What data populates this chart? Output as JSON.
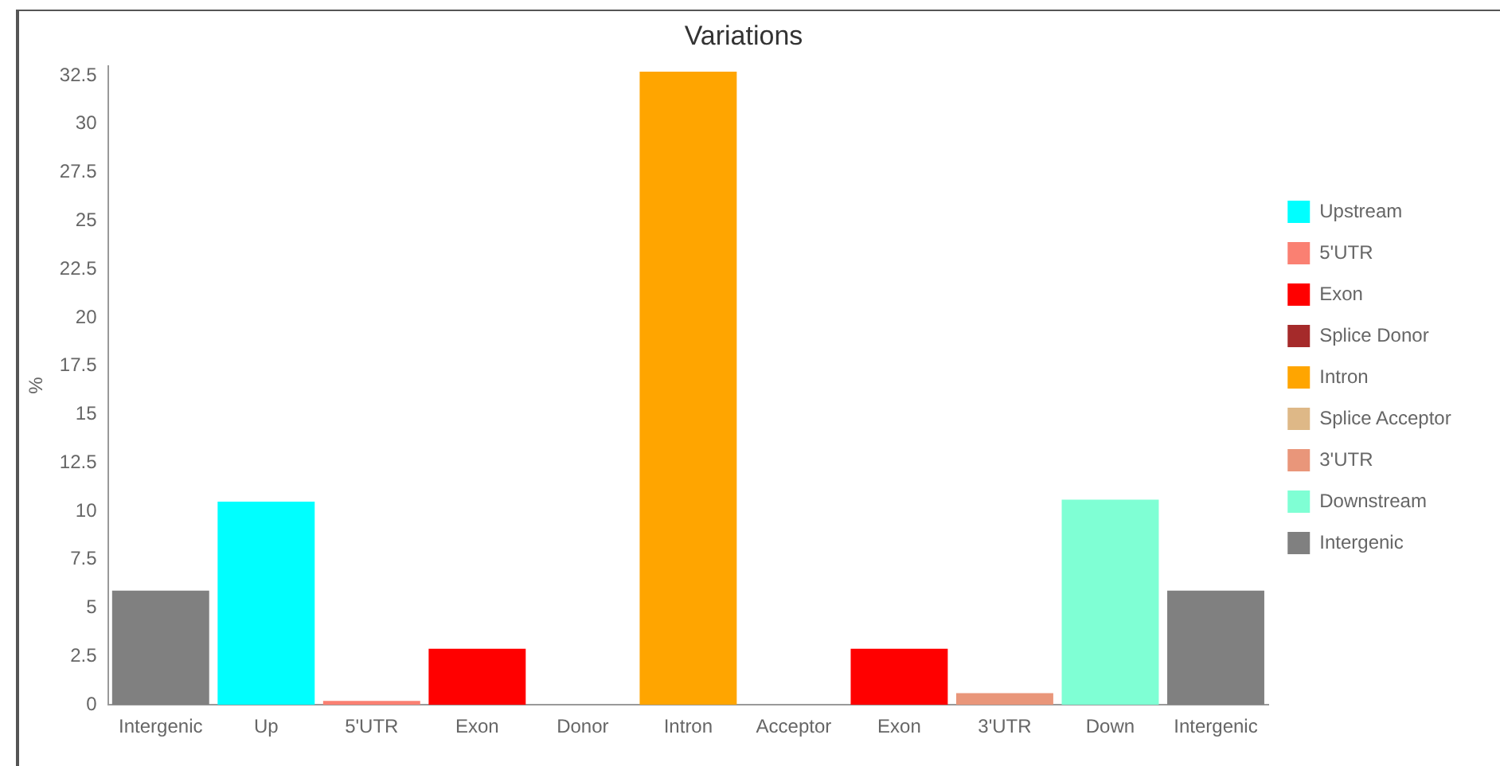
{
  "chart_data": {
    "type": "bar",
    "title": "Variations",
    "ylabel": "%",
    "categories": [
      "Intergenic",
      "Up",
      "5'UTR",
      "Exon",
      "Donor",
      "Intron",
      "Acceptor",
      "Exon",
      "3'UTR",
      "Down",
      "Intergenic"
    ],
    "series": [
      {
        "name": "Upstream",
        "color": "#00ffff",
        "values": [
          null,
          10.5,
          null,
          null,
          null,
          null,
          null,
          null,
          null,
          null,
          null
        ]
      },
      {
        "name": "5'UTR",
        "color": "#fa8072",
        "values": [
          null,
          null,
          0.2,
          null,
          null,
          null,
          null,
          null,
          null,
          null,
          null
        ]
      },
      {
        "name": "Exon",
        "color": "#ff0000",
        "values": [
          null,
          null,
          null,
          2.9,
          null,
          null,
          null,
          2.9,
          null,
          null,
          null
        ]
      },
      {
        "name": "Splice Donor",
        "color": "#a52a2a",
        "values": [
          null,
          null,
          null,
          null,
          0,
          null,
          null,
          null,
          null,
          null,
          null
        ]
      },
      {
        "name": "Intron",
        "color": "#ffa500",
        "values": [
          null,
          null,
          null,
          null,
          null,
          32.7,
          null,
          null,
          null,
          null,
          null
        ]
      },
      {
        "name": "Splice Acceptor",
        "color": "#deb887",
        "values": [
          null,
          null,
          null,
          null,
          null,
          null,
          0,
          null,
          null,
          null,
          null
        ]
      },
      {
        "name": "3'UTR",
        "color": "#e9967a",
        "values": [
          null,
          null,
          null,
          null,
          null,
          null,
          null,
          null,
          0.6,
          null,
          null
        ]
      },
      {
        "name": "Downstream",
        "color": "#7fffd4",
        "values": [
          null,
          null,
          null,
          null,
          null,
          null,
          null,
          null,
          null,
          10.6,
          null
        ]
      },
      {
        "name": "Intergenic",
        "color": "#808080",
        "values": [
          5.9,
          null,
          null,
          null,
          null,
          null,
          null,
          null,
          null,
          null,
          5.9
        ]
      }
    ],
    "ylim": [
      0,
      33
    ],
    "yticks": [
      0,
      2.5,
      5,
      7.5,
      10,
      12.5,
      15,
      17.5,
      20,
      22.5,
      25,
      27.5,
      30,
      32.5
    ],
    "grid": false,
    "legend": "right"
  }
}
